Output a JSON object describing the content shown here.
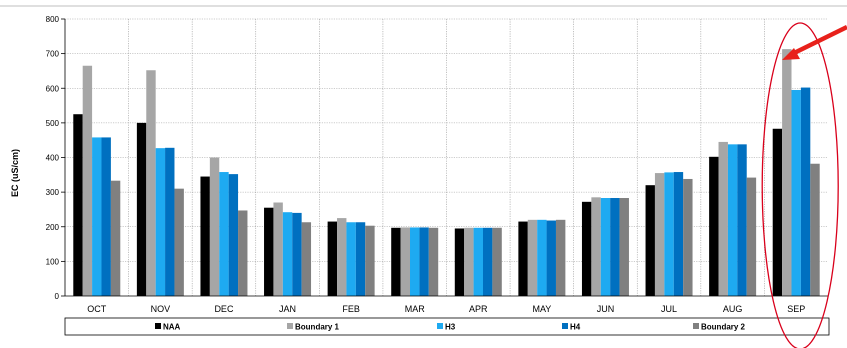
{
  "chart_data": {
    "type": "bar",
    "title": "",
    "xlabel": "",
    "ylabel": "EC (uS/cm)",
    "ylim": [
      0,
      800
    ],
    "yticks": [
      0,
      100,
      200,
      300,
      400,
      500,
      600,
      700,
      800
    ],
    "grid": true,
    "legend_position": "bottom",
    "categories": [
      "OCT",
      "NOV",
      "DEC",
      "JAN",
      "FEB",
      "MAR",
      "APR",
      "MAY",
      "JUN",
      "JUL",
      "AUG",
      "SEP"
    ],
    "series": [
      {
        "name": "NAA",
        "color": "#000000",
        "values": [
          525,
          500,
          345,
          255,
          215,
          197,
          195,
          215,
          272,
          320,
          402,
          483
        ]
      },
      {
        "name": "Boundary 1",
        "color": "#a6a6a6",
        "values": [
          665,
          652,
          400,
          270,
          225,
          198,
          197,
          220,
          285,
          355,
          445,
          713
        ]
      },
      {
        "name": "H3",
        "color": "#1eaaf1",
        "values": [
          458,
          427,
          358,
          242,
          213,
          198,
          197,
          220,
          283,
          357,
          438,
          595
        ]
      },
      {
        "name": "H4",
        "color": "#0070c0",
        "values": [
          458,
          428,
          352,
          240,
          213,
          198,
          197,
          218,
          283,
          358,
          438,
          602
        ]
      },
      {
        "name": "Boundary 2",
        "color": "#808080",
        "values": [
          333,
          310,
          247,
          213,
          203,
          197,
          197,
          220,
          283,
          338,
          342,
          382
        ]
      }
    ],
    "annotations": {
      "highlight_category": "SEP",
      "ellipse_color": "#d9001b",
      "arrow_color": "#e8211b"
    }
  }
}
